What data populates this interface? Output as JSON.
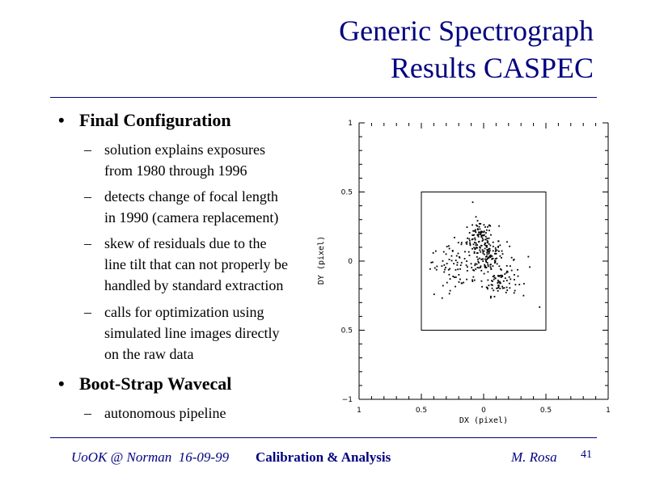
{
  "slide": {
    "title_line1": "Generic Spectrograph",
    "title_line2": "Results CASPEC"
  },
  "bullets": [
    {
      "label": "Final Configuration",
      "subs": [
        [
          "solution explains exposures",
          "from 1980 through 1996"
        ],
        [
          "detects change of focal length",
          "in 1990 (camera replacement)"
        ],
        [
          "skew of residuals due to the",
          "line tilt that can not properly be",
          "handled by standard extraction"
        ],
        [
          "calls for optimization using",
          "simulated line images directly",
          "on the raw data"
        ]
      ]
    },
    {
      "label": "Boot-Strap Wavecal",
      "subs": [
        [
          "autonomous pipeline"
        ]
      ]
    }
  ],
  "chart_data": {
    "type": "scatter",
    "xlabel": "DX (pixel)",
    "ylabel": "DY (pixel)",
    "xlim": [
      -1,
      1
    ],
    "ylim": [
      -1,
      1
    ],
    "x_ticks": [
      "1",
      "0.5",
      "0",
      "0.5",
      "1"
    ],
    "y_ticks": [
      "1",
      "0.5",
      "0",
      "0.5",
      "−1"
    ],
    "inner_box": {
      "x": [
        -0.5,
        0.5
      ],
      "y": [
        -0.5,
        0.5
      ]
    },
    "clusters": [
      {
        "cx": -0.03,
        "cy": 0.17,
        "sx": 0.05,
        "sy": 0.06,
        "n": 90
      },
      {
        "cx": 0.03,
        "cy": 0.04,
        "sx": 0.06,
        "sy": 0.07,
        "n": 90
      },
      {
        "cx": 0.13,
        "cy": -0.15,
        "sx": 0.07,
        "sy": 0.05,
        "n": 70
      },
      {
        "cx": -0.23,
        "cy": -0.03,
        "sx": 0.1,
        "sy": 0.07,
        "n": 60
      },
      {
        "cx": 0.0,
        "cy": 0.0,
        "sx": 0.2,
        "sy": 0.13,
        "n": 60
      }
    ],
    "point_color": "#000000"
  },
  "footer": {
    "left": "UoOK @ Norman  16-09-99",
    "center": "Calibration & Analysis",
    "right": "M. Rosa",
    "page": "41"
  }
}
